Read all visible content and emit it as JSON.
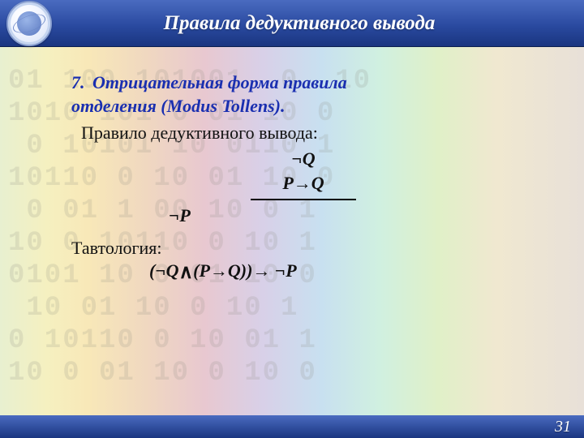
{
  "header": {
    "title": "Правила дедуктивного вывода"
  },
  "rule": {
    "number": "7.",
    "name_line1": "Отрицательная форма правила",
    "name_line2": "отделения   (Modus Tollens).",
    "sub": "Правило дедуктивного вывода:",
    "premise1": "¬Q",
    "premise2": "P→Q",
    "conclusion": "¬P"
  },
  "tautology": {
    "label": "Тавтология:",
    "formula_left": "(¬Q",
    "formula_right": "(P→Q))→ ¬P",
    "and_symbol": "∧"
  },
  "footer": {
    "page": "31"
  },
  "bg": "01 100 101001  0  10\n1010 101 0 01 10 0\n 0 10101 10 0110 1\n10110 0 10 01 10 0\n 0 01 1 00 10 0 1\n10 0 10110 0 10 1\n0101 10 0 01 10 0\n 10 01 10 0 10 1\n0 10110 0 10 01 1\n10 0 01 10 0 10 0"
}
